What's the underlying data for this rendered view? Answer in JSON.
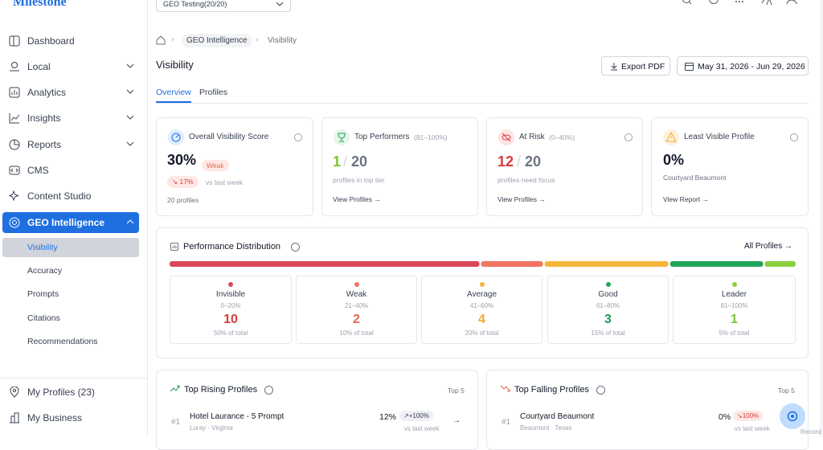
{
  "brand": "Milestone",
  "sidebar": {
    "nav": [
      "Dashboard",
      "Local",
      "Analytics",
      "Insights",
      "Reports",
      "CMS",
      "Content Studio",
      "GEO Intelligence"
    ],
    "sub_nav": [
      "Visibility",
      "Accuracy",
      "Prompts",
      "Citations",
      "Recommendations"
    ],
    "footer": [
      "My Profiles (23)",
      "My Business"
    ]
  },
  "topbar": {
    "selector": "GEO Testing(20/20)"
  },
  "breadcrumb": [
    "GEO Intelligence",
    "Visibility"
  ],
  "header": {
    "title": "Visibility",
    "export": "Export PDF",
    "date_range": "May 31, 2026 - Jun 29, 2026"
  },
  "tabs": [
    "Overview",
    "Profiles"
  ],
  "cards": {
    "overall": {
      "title": "Overall Visibility Score",
      "value": "30%",
      "badge": "Weak",
      "change": "17%",
      "change_note": "vs last week",
      "footer": "20 profiles"
    },
    "top": {
      "title": "Top Performers",
      "range": "(81–100%)",
      "value": "1",
      "separator": "/",
      "total": "20",
      "note": "profiles in top tier",
      "link": "View Profiles →"
    },
    "risk": {
      "title": "At Risk",
      "range": "(0–40%)",
      "value": "12",
      "separator": "/",
      "total": "20",
      "note": "profiles need focus",
      "link": "View Profiles →"
    },
    "least": {
      "title": "Least Visible Profile",
      "value": "0%",
      "note": "Courtyard Beaumont",
      "link": "View Report →"
    }
  },
  "distribution": {
    "title": "Performance Distribution",
    "link": "All Profiles →",
    "tiers": [
      {
        "name": "Invisible",
        "range": "0–20%",
        "count": 10,
        "share": "50% of total",
        "color": "#d9475a",
        "text_color": "#d93a3a"
      },
      {
        "name": "Weak",
        "range": "21–40%",
        "count": 2,
        "share": "10% of total",
        "color": "#f07462",
        "text_color": "#e8674f"
      },
      {
        "name": "Average",
        "range": "41–60%",
        "count": 4,
        "share": "20% of total",
        "color": "#f5b63c",
        "text_color": "#f0a830"
      },
      {
        "name": "Good",
        "range": "61–80%",
        "count": 3,
        "share": "15% of total",
        "color": "#22a35a",
        "text_color": "#1f9a55"
      },
      {
        "name": "Leader",
        "range": "81–100%",
        "count": 1,
        "share": "5% of total",
        "color": "#8ccf3e",
        "text_color": "#7cc43a"
      }
    ]
  },
  "rising": {
    "title": "Top Rising Profiles",
    "limit": "Top 5",
    "rows": [
      {
        "rank": "#1",
        "name": "Hotel Laurance - 5 Prompt",
        "location": "Luray · Virginia",
        "value": "12%",
        "change": "+100%",
        "note": "vs last week"
      }
    ]
  },
  "falling": {
    "title": "Top Falling Profiles",
    "limit": "Top 5",
    "rows": [
      {
        "rank": "#1",
        "name": "Courtyard Beaumont",
        "location": "Beaumont · Texas",
        "value": "0%",
        "change": "100%",
        "note": "vs last week"
      }
    ]
  },
  "record": "Record"
}
